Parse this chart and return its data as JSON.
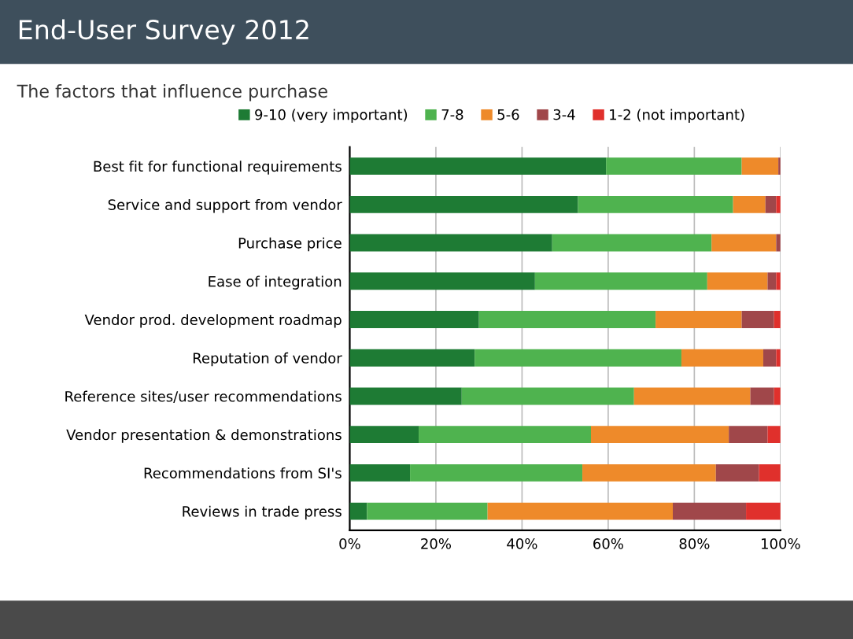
{
  "chart_data": {
    "type": "bar",
    "orientation": "horizontal",
    "stacked": true,
    "title": "End-User Survey 2012",
    "subtitle": "The factors that influence purchase",
    "categories": [
      "Best fit for functional requirements",
      "Service and support from vendor",
      "Purchase price",
      "Ease of integration",
      "Vendor prod. development roadmap",
      "Reputation of vendor",
      "Reference sites/user recommendations",
      "Vendor presentation & demonstrations",
      "Recommendations from SI's",
      "Reviews in trade press"
    ],
    "series": [
      {
        "name": "9-10 (very important)",
        "color": "#1e7b34",
        "values": [
          59.5,
          53,
          47,
          43,
          30,
          29,
          26,
          16,
          14,
          4
        ]
      },
      {
        "name": "7-8",
        "color": "#4fb34f",
        "values": [
          31.5,
          36,
          37,
          40,
          41,
          48,
          40,
          40,
          40,
          28
        ]
      },
      {
        "name": "5-6",
        "color": "#ee8a2a",
        "values": [
          8.5,
          7.5,
          15,
          14,
          20,
          19,
          27,
          32,
          31,
          43
        ]
      },
      {
        "name": "3-4",
        "color": "#a0474a",
        "values": [
          0.5,
          2.5,
          1,
          2,
          7.5,
          3,
          5.5,
          9,
          10,
          17
        ]
      },
      {
        "name": "1-2 (not important)",
        "color": "#e0302c",
        "values": [
          0,
          1,
          0,
          1,
          1.5,
          1,
          1.5,
          3,
          5,
          8
        ]
      }
    ],
    "xlim": [
      0,
      100
    ],
    "xticks": [
      {
        "value": 0,
        "label": "0%"
      },
      {
        "value": 20,
        "label": "20%"
      },
      {
        "value": 40,
        "label": "40%"
      },
      {
        "value": 60,
        "label": "60%"
      },
      {
        "value": 80,
        "label": "80%"
      },
      {
        "value": 100,
        "label": "100%"
      }
    ],
    "grid": "x",
    "legend": "top"
  }
}
